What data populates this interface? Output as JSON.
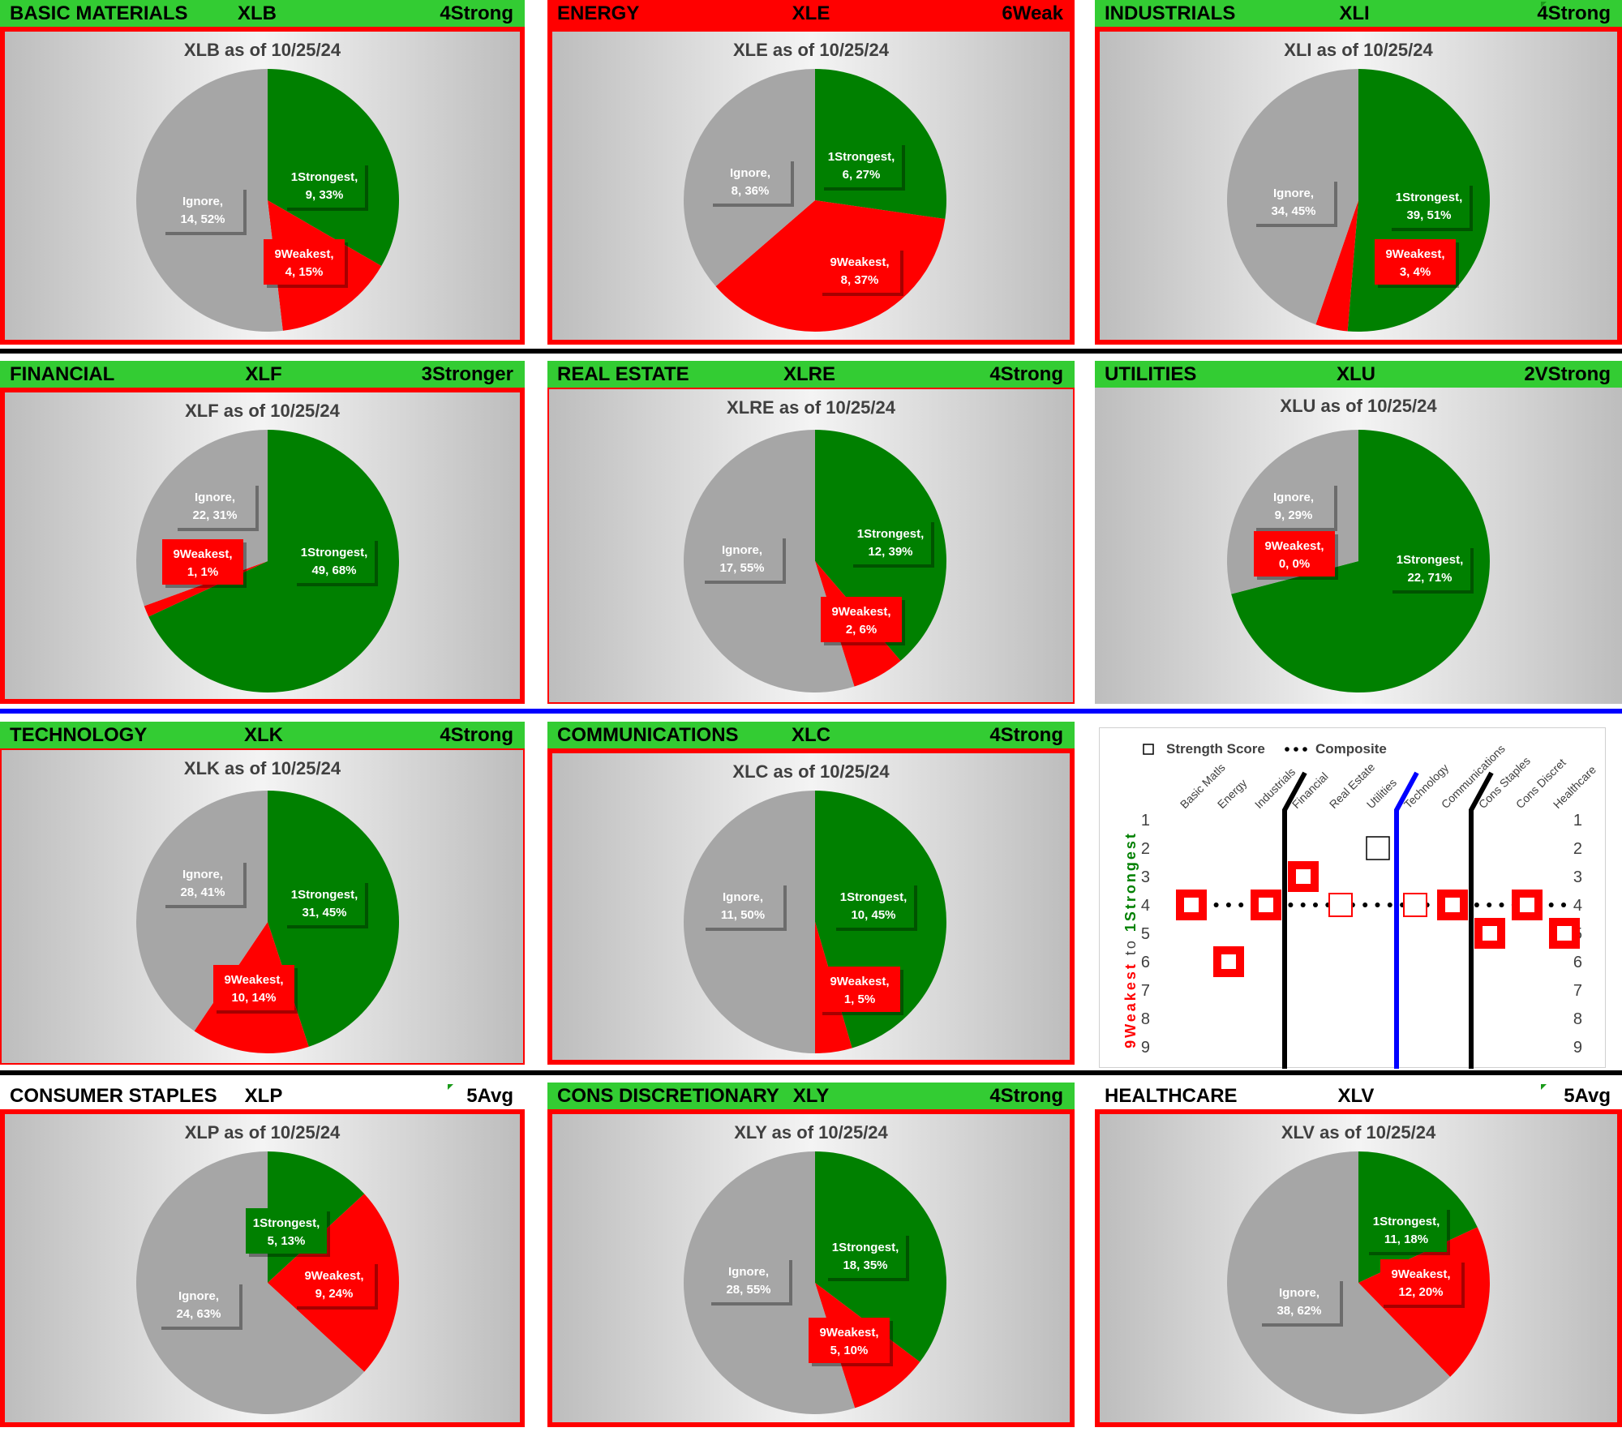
{
  "colors": {
    "strongest": "#008000",
    "weakest": "#ff0000",
    "ignore": "#a6a6a6",
    "header_green": "#33cc33",
    "header_red": "#ff0000",
    "separator_black": "#000000",
    "separator_blue": "#0000ff"
  },
  "sectors": [
    {
      "name": "BASIC MATERIALS",
      "ticker": "XLB",
      "rating": "4Strong",
      "title": "XLB as of 10/25/24"
    },
    {
      "name": "ENERGY",
      "ticker": "XLE",
      "rating": "6Weak",
      "title": "XLE as of 10/25/24"
    },
    {
      "name": "INDUSTRIALS",
      "ticker": "XLI",
      "rating": "4Strong",
      "title": "XLI as of 10/25/24"
    },
    {
      "name": "FINANCIAL",
      "ticker": "XLF",
      "rating": "3Stronger",
      "title": "XLF as of 10/25/24"
    },
    {
      "name": "REAL ESTATE",
      "ticker": "XLRE",
      "rating": "4Strong",
      "title": "XLRE as of 10/25/24"
    },
    {
      "name": "UTILITIES",
      "ticker": "XLU",
      "rating": "2VStrong",
      "title": "XLU as of 10/25/24"
    },
    {
      "name": "TECHNOLOGY",
      "ticker": "XLK",
      "rating": "4Strong",
      "title": "XLK as of 10/25/24"
    },
    {
      "name": "COMMUNICATIONS",
      "ticker": "XLC",
      "rating": "4Strong",
      "title": "XLC as of 10/25/24"
    },
    {
      "name": "CONSUMER STAPLES",
      "ticker": "XLP",
      "rating": "5Avg",
      "title": "XLP as of 10/25/24"
    },
    {
      "name": "CONS DISCRETIONARY",
      "ticker": "XLY",
      "rating": "4Strong",
      "title": "XLY as of 10/25/24"
    },
    {
      "name": "HEALTHCARE",
      "ticker": "XLV",
      "rating": "5Avg",
      "title": "XLV as of 10/25/24"
    }
  ],
  "chart_data": [
    {
      "type": "pie",
      "title": "XLB as of 10/25/24",
      "slices": [
        {
          "label": "1Strongest",
          "count": 9,
          "pct": "33%"
        },
        {
          "label": "9Weakest",
          "count": 4,
          "pct": "15%"
        },
        {
          "label": "Ignore",
          "count": 14,
          "pct": "52%"
        }
      ]
    },
    {
      "type": "pie",
      "title": "XLE as of 10/25/24",
      "slices": [
        {
          "label": "1Strongest",
          "count": 6,
          "pct": "27%"
        },
        {
          "label": "9Weakest",
          "count": 8,
          "pct": "37%"
        },
        {
          "label": "Ignore",
          "count": 8,
          "pct": "36%"
        }
      ]
    },
    {
      "type": "pie",
      "title": "XLI as of 10/25/24",
      "slices": [
        {
          "label": "1Strongest",
          "count": 39,
          "pct": "51%"
        },
        {
          "label": "9Weakest",
          "count": 3,
          "pct": "4%"
        },
        {
          "label": "Ignore",
          "count": 34,
          "pct": "45%"
        }
      ]
    },
    {
      "type": "pie",
      "title": "XLF as of 10/25/24",
      "slices": [
        {
          "label": "1Strongest",
          "count": 49,
          "pct": "68%"
        },
        {
          "label": "9Weakest",
          "count": 1,
          "pct": "1%"
        },
        {
          "label": "Ignore",
          "count": 22,
          "pct": "31%"
        }
      ]
    },
    {
      "type": "pie",
      "title": "XLRE as of 10/25/24",
      "slices": [
        {
          "label": "1Strongest",
          "count": 12,
          "pct": "39%"
        },
        {
          "label": "9Weakest",
          "count": 2,
          "pct": "6%"
        },
        {
          "label": "Ignore",
          "count": 17,
          "pct": "55%"
        }
      ]
    },
    {
      "type": "pie",
      "title": "XLU as of 10/25/24",
      "slices": [
        {
          "label": "1Strongest",
          "count": 22,
          "pct": "71%"
        },
        {
          "label": "9Weakest",
          "count": 0,
          "pct": "0%"
        },
        {
          "label": "Ignore",
          "count": 9,
          "pct": "29%"
        }
      ]
    },
    {
      "type": "pie",
      "title": "XLK as of 10/25/24",
      "slices": [
        {
          "label": "1Strongest",
          "count": 31,
          "pct": "45%"
        },
        {
          "label": "9Weakest",
          "count": 10,
          "pct": "14%"
        },
        {
          "label": "Ignore",
          "count": 28,
          "pct": "41%"
        }
      ]
    },
    {
      "type": "pie",
      "title": "XLC as of 10/25/24",
      "slices": [
        {
          "label": "1Strongest",
          "count": 10,
          "pct": "45%"
        },
        {
          "label": "9Weakest",
          "count": 1,
          "pct": "5%"
        },
        {
          "label": "Ignore",
          "count": 11,
          "pct": "50%"
        }
      ]
    },
    {
      "type": "pie",
      "title": "XLP as of 10/25/24",
      "slices": [
        {
          "label": "1Strongest",
          "count": 5,
          "pct": "13%"
        },
        {
          "label": "9Weakest",
          "count": 9,
          "pct": "24%"
        },
        {
          "label": "Ignore",
          "count": 24,
          "pct": "63%"
        }
      ]
    },
    {
      "type": "pie",
      "title": "XLY as of 10/25/24",
      "slices": [
        {
          "label": "1Strongest",
          "count": 18,
          "pct": "35%"
        },
        {
          "label": "9Weakest",
          "count": 5,
          "pct": "10%"
        },
        {
          "label": "Ignore",
          "count": 28,
          "pct": "55%"
        }
      ]
    },
    {
      "type": "pie",
      "title": "XLV as of 10/25/24",
      "slices": [
        {
          "label": "1Strongest",
          "count": 11,
          "pct": "18%"
        },
        {
          "label": "9Weakest",
          "count": 12,
          "pct": "20%"
        },
        {
          "label": "Ignore",
          "count": 38,
          "pct": "62%"
        }
      ]
    },
    {
      "type": "scatter",
      "title": "",
      "legend": {
        "strength": "Strength Score",
        "composite": "Composite"
      },
      "categories": [
        "Basic Matls",
        "Energy",
        "Industrials",
        "Financial",
        "Real Estate",
        "Utilities",
        "Technology",
        "Communications",
        "Cons Staples",
        "Cons Discret",
        "Healthcare"
      ],
      "strength_scores": [
        4,
        6,
        4,
        3,
        4,
        2,
        4,
        4,
        5,
        4,
        5
      ],
      "composite": 4,
      "yticks": [
        1,
        2,
        3,
        4,
        5,
        6,
        7,
        8,
        9
      ],
      "ylim": [
        1,
        9
      ],
      "ylabel_weak": "9Weakest",
      "ylabel_mid": "to",
      "ylabel_strong": "1Strongest"
    }
  ]
}
